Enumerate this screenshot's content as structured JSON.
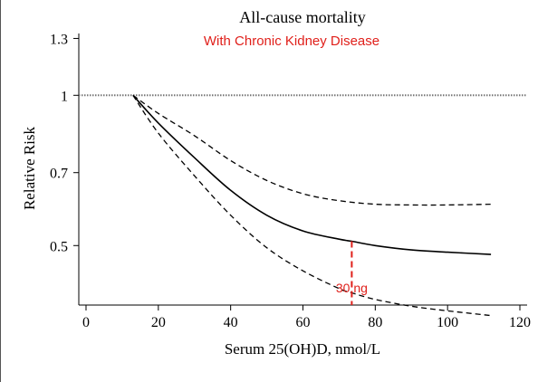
{
  "chart_data": {
    "type": "line",
    "title": "All-cause mortality",
    "subtitle": "With Chronic Kidney Disease",
    "xlabel": "Serum 25(OH)D, nmol/L",
    "ylabel": "Relative Risk",
    "xlim": [
      -2,
      122
    ],
    "ylim": [
      0.38,
      1.33
    ],
    "y_scale": "log",
    "x_ticks": [
      0,
      20,
      40,
      60,
      80,
      100,
      120
    ],
    "y_ticks": [
      0.5,
      0.7,
      1,
      1.3
    ],
    "y_tick_labels": [
      "0.5",
      "0.7",
      "1",
      "1.3"
    ],
    "reference_line": {
      "y": 1,
      "style": "dotted"
    },
    "annotation": {
      "x": 73.5,
      "label": "30 ng",
      "color": "#e0201b"
    },
    "colors": {
      "lines": "#000000",
      "annotation": "#e0201b",
      "subtitle": "#e0201b"
    },
    "series": [
      {
        "style": "solid",
        "x": [
          13,
          20,
          30,
          40,
          50,
          60,
          70,
          73.5,
          80,
          90,
          100,
          112
        ],
        "y": [
          1.0,
          0.88,
          0.75,
          0.645,
          0.575,
          0.535,
          0.515,
          0.51,
          0.5,
          0.49,
          0.485,
          0.48
        ]
      },
      {
        "style": "dashed",
        "x": [
          13,
          20,
          30,
          40,
          50,
          60,
          70,
          80,
          90,
          100,
          112
        ],
        "y": [
          1.0,
          0.92,
          0.83,
          0.74,
          0.675,
          0.635,
          0.615,
          0.605,
          0.603,
          0.603,
          0.605
        ]
      },
      {
        "style": "dashed",
        "x": [
          13,
          20,
          30,
          40,
          50,
          60,
          70,
          73.5,
          80,
          90,
          100,
          112
        ],
        "y": [
          1.0,
          0.84,
          0.69,
          0.575,
          0.495,
          0.445,
          0.41,
          0.402,
          0.39,
          0.378,
          0.37,
          0.362
        ]
      }
    ]
  }
}
